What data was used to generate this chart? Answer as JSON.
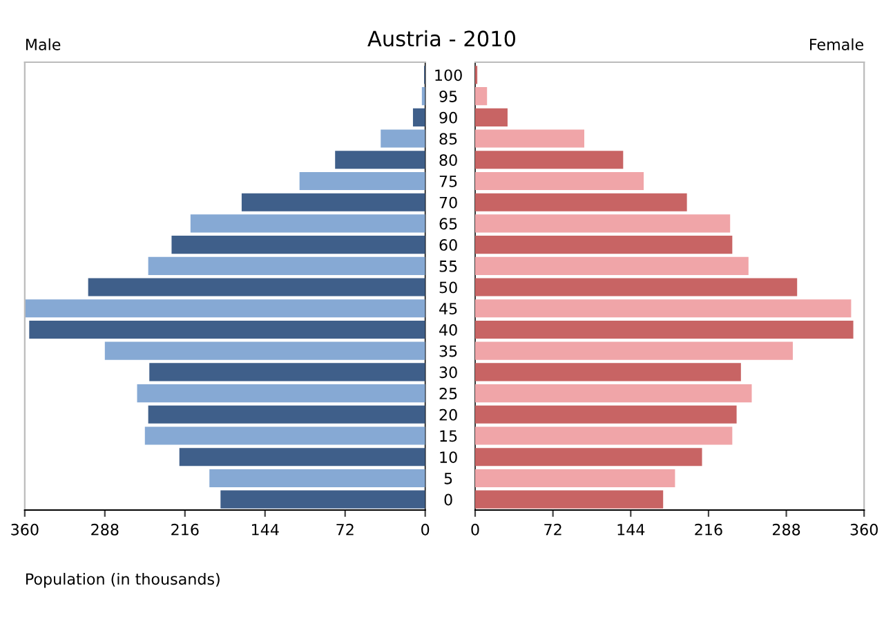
{
  "chart_data": [
    {
      "type": "bar",
      "orientation": "horizontal",
      "title": "Austria - 2010",
      "xlabel": "Population (in thousands)",
      "categories": [
        "100",
        "95",
        "90",
        "85",
        "80",
        "75",
        "70",
        "65",
        "60",
        "55",
        "50",
        "45",
        "40",
        "35",
        "30",
        "25",
        "20",
        "15",
        "10",
        "5",
        "0"
      ],
      "series": [
        {
          "name": "Male",
          "values": [
            1,
            3,
            11,
            40,
            81,
            113,
            165,
            211,
            228,
            249,
            303,
            360,
            356,
            288,
            248,
            259,
            249,
            252,
            221,
            194,
            184
          ],
          "colors": [
            "#3f5f8a",
            "#86a9d4",
            "#3f5f8a",
            "#86a9d4",
            "#3f5f8a",
            "#86a9d4",
            "#3f5f8a",
            "#86a9d4",
            "#3f5f8a",
            "#86a9d4",
            "#3f5f8a",
            "#86a9d4",
            "#3f5f8a",
            "#86a9d4",
            "#3f5f8a",
            "#86a9d4",
            "#3f5f8a",
            "#86a9d4",
            "#3f5f8a",
            "#86a9d4",
            "#3f5f8a"
          ]
        }
      ],
      "xlim": [
        360,
        0
      ],
      "xticks": [
        360,
        288,
        216,
        144,
        72,
        0
      ],
      "tick_labels": "x",
      "grid": false,
      "legend": false
    },
    {
      "type": "bar",
      "orientation": "horizontal",
      "categories": [
        "100",
        "95",
        "90",
        "85",
        "80",
        "75",
        "70",
        "65",
        "60",
        "55",
        "50",
        "45",
        "40",
        "35",
        "30",
        "25",
        "20",
        "15",
        "10",
        "5",
        "0"
      ],
      "series": [
        {
          "name": "Female",
          "values": [
            2,
            11,
            30,
            101,
            137,
            156,
            196,
            236,
            238,
            253,
            298,
            348,
            350,
            294,
            246,
            256,
            242,
            238,
            210,
            185,
            174
          ],
          "colors": [
            "#c86464",
            "#f0a5a8",
            "#c86464",
            "#f0a5a8",
            "#c86464",
            "#f0a5a8",
            "#c86464",
            "#f0a5a8",
            "#c86464",
            "#f0a5a8",
            "#c86464",
            "#f0a5a8",
            "#c86464",
            "#f0a5a8",
            "#c86464",
            "#f0a5a8",
            "#c86464",
            "#f0a5a8",
            "#c86464",
            "#f0a5a8",
            "#c86464"
          ]
        }
      ],
      "xlim": [
        0,
        360
      ],
      "xticks": [
        0,
        72,
        144,
        216,
        288,
        360
      ],
      "grid": false,
      "legend": false
    }
  ]
}
